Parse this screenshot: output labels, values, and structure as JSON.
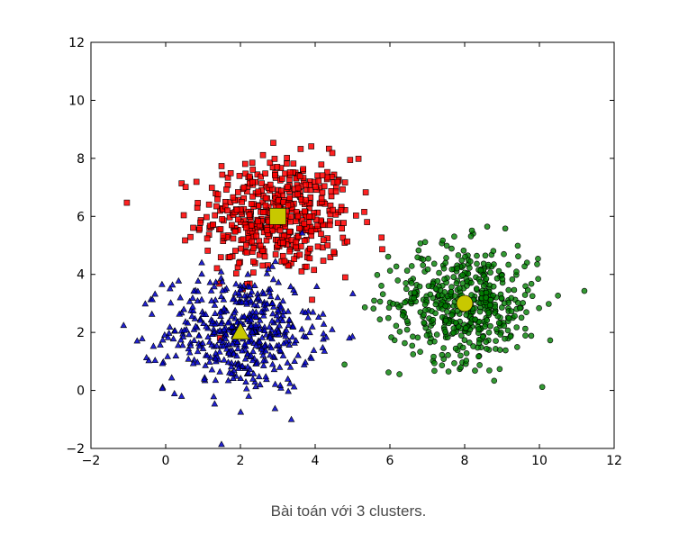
{
  "caption": "Bài toán với 3 clusters.",
  "chart_data": {
    "type": "scatter",
    "title": "",
    "xlabel": "",
    "ylabel": "",
    "xlim": [
      -2,
      12
    ],
    "ylim": [
      -2,
      12
    ],
    "xticks": [
      "−2",
      "0",
      "2",
      "4",
      "6",
      "8",
      "10",
      "12"
    ],
    "yticks": [
      "−2",
      "0",
      "2",
      "4",
      "6",
      "8",
      "10",
      "12"
    ],
    "grid": false,
    "legend": "none",
    "series": [
      {
        "marker": "triangle",
        "color": "#0000cc",
        "count": 500,
        "center": [
          2,
          2
        ],
        "spread": [
          1.0,
          1.0
        ]
      },
      {
        "marker": "square",
        "color": "#ff0000",
        "count": 500,
        "center": [
          3,
          6
        ],
        "spread": [
          1.0,
          1.0
        ]
      },
      {
        "marker": "circle",
        "color": "#008000",
        "count": 500,
        "center": [
          8,
          3
        ],
        "spread": [
          1.0,
          1.0
        ]
      }
    ],
    "centroids": [
      {
        "marker": "triangle",
        "color": "#c8c800",
        "x": 2,
        "y": 2
      },
      {
        "marker": "square",
        "color": "#c8c800",
        "x": 3,
        "y": 6
      },
      {
        "marker": "circle",
        "color": "#c8c800",
        "x": 8,
        "y": 3
      }
    ]
  }
}
